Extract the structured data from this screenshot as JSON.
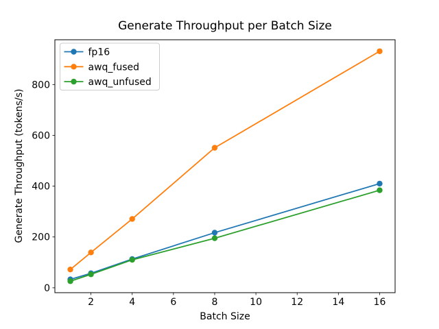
{
  "chart_data": {
    "type": "line",
    "title": "Generate Throughput per Batch Size",
    "xlabel": "Batch Size",
    "ylabel": "Generate Throughput (tokens/s)",
    "x": [
      1,
      2,
      4,
      8,
      16
    ],
    "series": [
      {
        "name": "fp16",
        "color": "#1f77b4",
        "values": [
          33,
          57,
          113,
          217,
          410
        ]
      },
      {
        "name": "awq_fused",
        "color": "#ff7f0e",
        "values": [
          72,
          139,
          271,
          551,
          931
        ]
      },
      {
        "name": "awq_unfused",
        "color": "#2ca02c",
        "values": [
          26,
          53,
          110,
          195,
          384
        ]
      }
    ],
    "xticks": [
      2,
      4,
      6,
      8,
      10,
      12,
      14,
      16
    ],
    "yticks": [
      0,
      200,
      400,
      600,
      800
    ],
    "xlim": [
      0.25,
      16.75
    ],
    "ylim": [
      -19.25,
      976.25
    ],
    "marker": "o",
    "grid": false,
    "legend": {
      "location": "upper left"
    },
    "colors": {
      "spine": "#000000",
      "tick_label": "#000000",
      "legend_border": "#cccccc",
      "background": "#ffffff"
    }
  }
}
